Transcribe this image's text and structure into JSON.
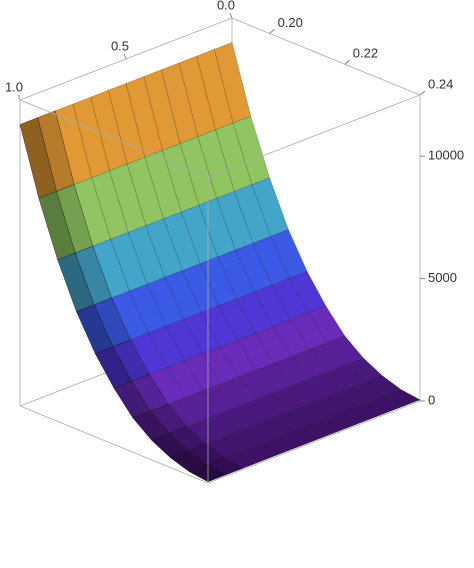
{
  "chart_data": {
    "type": "surface",
    "x": [
      0.19,
      0.195,
      0.2,
      0.205,
      0.21,
      0.215,
      0.22,
      0.225,
      0.23,
      0.235,
      0.24
    ],
    "values": [
      11500,
      8800,
      6600,
      4800,
      3400,
      2300,
      1400,
      800,
      400,
      150,
      50
    ],
    "xlim": [
      0.19,
      0.24
    ],
    "xticks": [
      {
        "value": 0.2,
        "label": "0.20"
      },
      {
        "value": 0.22,
        "label": "0.22"
      },
      {
        "value": 0.24,
        "label": "0.24"
      }
    ],
    "ylim": [
      0,
      1
    ],
    "yticks": [
      {
        "value": 0,
        "label": "0.0"
      },
      {
        "value": 0.5,
        "label": "0.5"
      },
      {
        "value": 1,
        "label": "1.0"
      }
    ],
    "zlim": [
      0,
      12500
    ],
    "zticks": [
      0,
      5000,
      10000
    ],
    "colors": [
      "#3a1060",
      "#6a2ab8",
      "#3c3ee8",
      "#3a9ee0",
      "#6cc070",
      "#e0d040",
      "#e08030",
      "#c82020"
    ]
  }
}
